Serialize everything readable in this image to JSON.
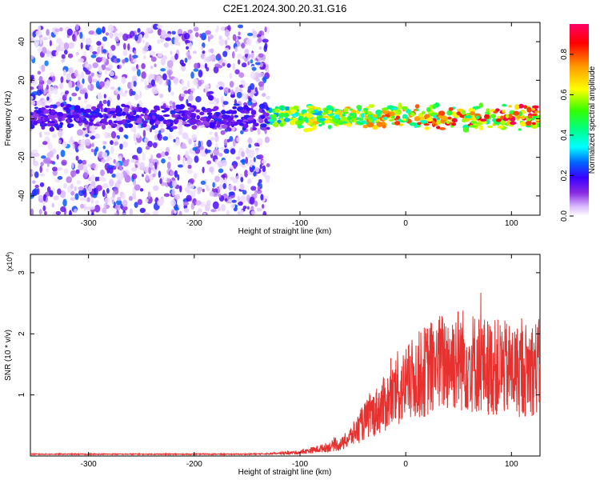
{
  "title": "C2E1.2024.300.20.31.G16",
  "chart_data": [
    {
      "type": "heatmap",
      "xlabel": "Height of straight line (km)",
      "ylabel": "Frequency (Hz)",
      "xlim": [
        -355,
        127
      ],
      "ylim": [
        -50,
        50
      ],
      "xticks": [
        -300,
        -200,
        -100,
        0,
        100
      ],
      "yticks": [
        -40,
        -20,
        0,
        20,
        40
      ],
      "grid": false,
      "colorbar": {
        "label": "Normalized spectral amplitude",
        "range": [
          0,
          0.95
        ],
        "ticks": [
          0.0,
          0.2,
          0.4,
          0.6,
          0.8
        ],
        "colormap": [
          "#ffffff",
          "#d9b8ff",
          "#8a2be2",
          "#3a00ff",
          "#0066ff",
          "#00ffff",
          "#00ff66",
          "#66ff00",
          "#ffff00",
          "#ff9900",
          "#ff0000",
          "#ff0066"
        ]
      },
      "features": [
        {
          "name": "noise",
          "x_range": [
            -355,
            -130
          ],
          "freq_range": [
            -50,
            48
          ],
          "amplitude": "low"
        },
        {
          "name": "carrier",
          "x_range": [
            -355,
            127
          ],
          "freq_center": 1,
          "amplitude": "rising toward high heights"
        }
      ]
    },
    {
      "type": "line",
      "xlabel": "Height of straight line (km)",
      "ylabel": "SNR (10 * v/v)",
      "ylabel_scale": "(x10",
      "ylabel_scale_exp": "4",
      "scale_close": ")",
      "xlim": [
        -355,
        127
      ],
      "ylim": [
        0,
        3.3
      ],
      "xticks": [
        -300,
        -200,
        -100,
        0,
        100
      ],
      "yticks": [
        1,
        2,
        3
      ],
      "color": "#e8302e",
      "series": [
        {
          "x": [
            -355,
            -300,
            -250,
            -200,
            -150,
            -120,
            -100,
            -80,
            -60,
            -50,
            -40,
            -30,
            -20,
            -10,
            0,
            10,
            20,
            30,
            40,
            50,
            60,
            70,
            80,
            90,
            100,
            110,
            120,
            127
          ],
          "y": [
            0.03,
            0.03,
            0.03,
            0.03,
            0.03,
            0.04,
            0.06,
            0.12,
            0.2,
            0.35,
            0.55,
            0.7,
            0.85,
            1.0,
            1.15,
            1.3,
            1.4,
            1.5,
            1.55,
            1.6,
            1.55,
            1.5,
            1.45,
            1.45,
            1.4,
            1.4,
            1.45,
            1.45
          ]
        }
      ]
    }
  ]
}
